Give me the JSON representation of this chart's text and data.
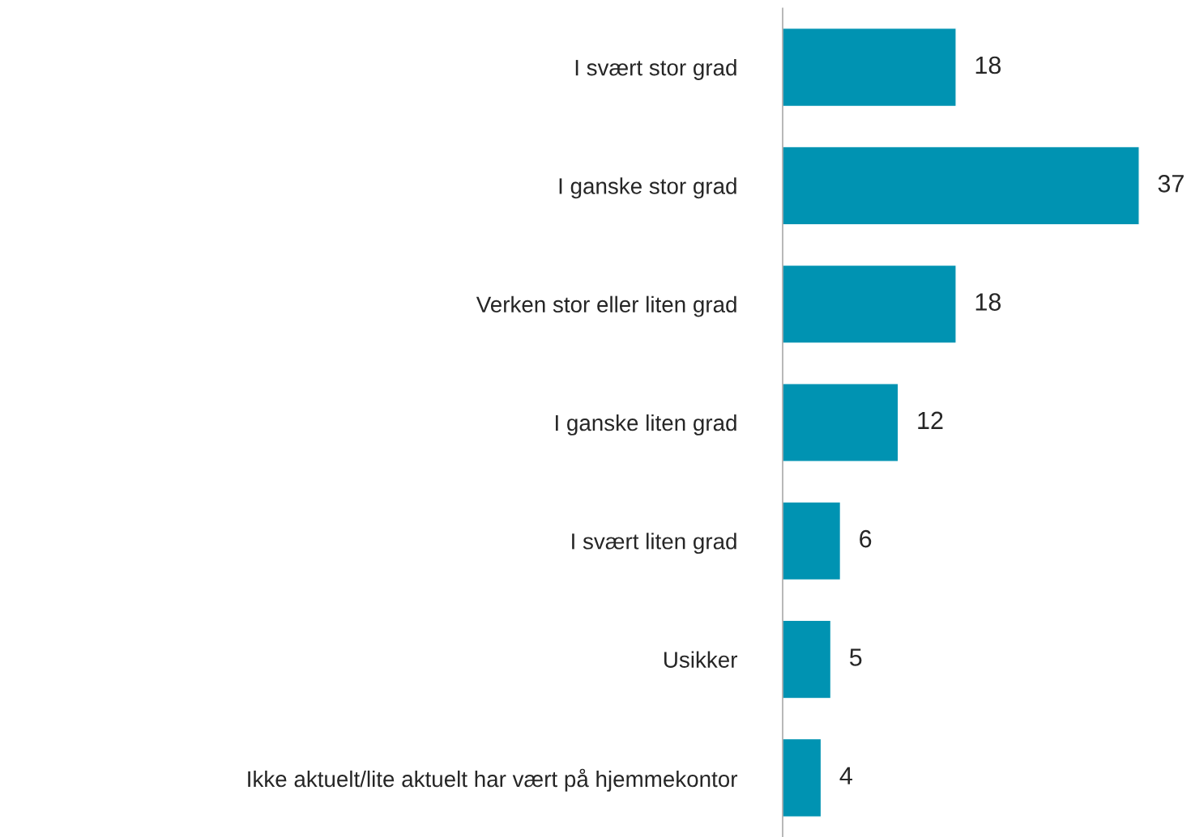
{
  "chart_data": {
    "type": "bar",
    "orientation": "horizontal",
    "categories": [
      "I svært stor grad",
      "I ganske stor grad",
      "Verken stor eller liten grad",
      "I ganske liten grad",
      "I svært liten grad",
      "Usikker",
      "Ikke aktuelt/lite aktuelt har vært på hjemmekontor"
    ],
    "values": [
      18,
      37,
      18,
      12,
      6,
      5,
      4
    ],
    "color": "#0093b2",
    "data_labels": true
  }
}
